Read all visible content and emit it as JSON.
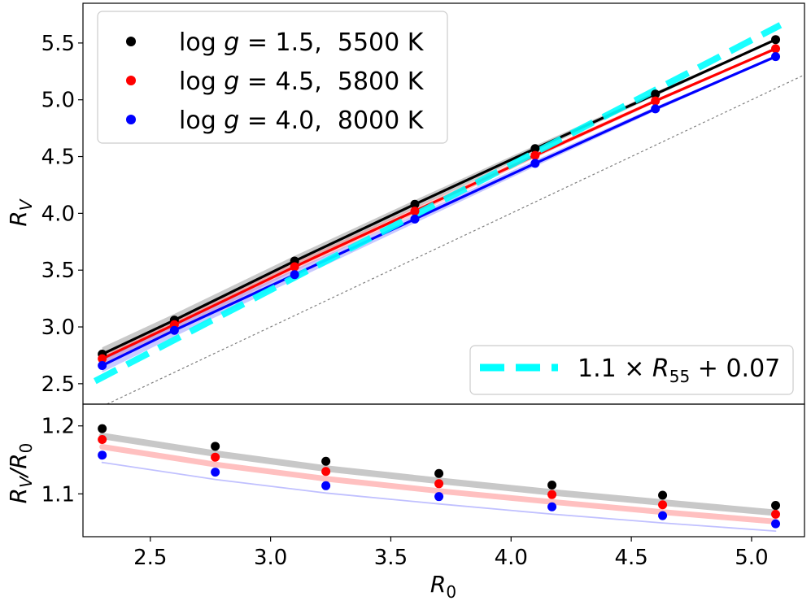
{
  "chart_data": [
    {
      "type": "line",
      "panel": "top",
      "xlabel": "",
      "ylabel_main": "R",
      "ylabel_sub": "V",
      "ylim": [
        2.32,
        5.85
      ],
      "xlim": [
        2.22,
        5.22
      ],
      "yticks": [
        "2.5",
        "3.0",
        "3.5",
        "4.0",
        "4.5",
        "5.0",
        "5.5"
      ],
      "x": [
        2.3,
        2.6,
        3.1,
        3.6,
        4.1,
        4.6,
        5.1
      ],
      "series": [
        {
          "name": "log g = 1.5,  5500 K",
          "color": "#000000",
          "band_color": "#888888",
          "values": [
            2.76,
            3.06,
            3.58,
            4.08,
            4.57,
            5.05,
            5.53
          ]
        },
        {
          "name": "log g = 4.5,  5800 K",
          "color": "#ff0000",
          "band_color": "#ff8888",
          "values": [
            2.72,
            3.02,
            3.53,
            4.02,
            4.51,
            4.99,
            5.45
          ]
        },
        {
          "name": "log g = 4.0,  8000 K",
          "color": "#0000ff",
          "band_color": "#8888ff",
          "values": [
            2.66,
            2.97,
            3.46,
            3.95,
            4.44,
            4.92,
            5.38
          ]
        }
      ],
      "fit_line": {
        "name": "1.1 × R55 + 0.07",
        "color": "#00ffff",
        "slope": 1.1,
        "intercept": 0.07
      },
      "reference_line": {
        "name": "y = x",
        "color": "#808080"
      },
      "legend": {
        "entries": [
          {
            "prefix": "log ",
            "var": "g",
            "suffix": " = 1.5,  5500 K"
          },
          {
            "prefix": "log ",
            "var": "g",
            "suffix": " = 4.5,  5800 K"
          },
          {
            "prefix": "log ",
            "var": "g",
            "suffix": " = 4.0,  8000 K"
          }
        ],
        "placement": "top-left"
      },
      "fit_legend": {
        "lead": "1.1 × ",
        "var": "R",
        "sub": "55",
        "tail": " + 0.07",
        "placement": "bottom-right"
      }
    },
    {
      "type": "line",
      "panel": "bottom",
      "xlabel_main": "R",
      "xlabel_sub": "0",
      "ylabel_main": "R",
      "ylabel_sub_1": "V",
      "ylabel_mid": "/R",
      "ylabel_sub_2": "0",
      "ylim": [
        1.037,
        1.232
      ],
      "xlim": [
        2.22,
        5.22
      ],
      "xticks": [
        "2.5",
        "3.0",
        "3.5",
        "4.0",
        "4.5",
        "5.0"
      ],
      "yticks": [
        "1.1",
        "1.2"
      ],
      "x": [
        2.3,
        2.77,
        3.23,
        3.7,
        4.17,
        4.63,
        5.1
      ],
      "series": [
        {
          "name": "log g = 1.5,  5500 K",
          "color": "#000000",
          "band_color": "#c8c8c8",
          "values": [
            1.196,
            1.17,
            1.148,
            1.13,
            1.113,
            1.098,
            1.083
          ]
        },
        {
          "name": "log g = 4.5,  5800 K",
          "color": "#ff0000",
          "band_color": "#ffc0c0",
          "values": [
            1.18,
            1.154,
            1.133,
            1.115,
            1.099,
            1.084,
            1.07
          ]
        },
        {
          "name": "log g = 4.0,  8000 K",
          "color": "#0000ff",
          "band_color": "#c0c0ff",
          "values": [
            1.157,
            1.132,
            1.112,
            1.096,
            1.081,
            1.068,
            1.056
          ]
        }
      ]
    }
  ]
}
